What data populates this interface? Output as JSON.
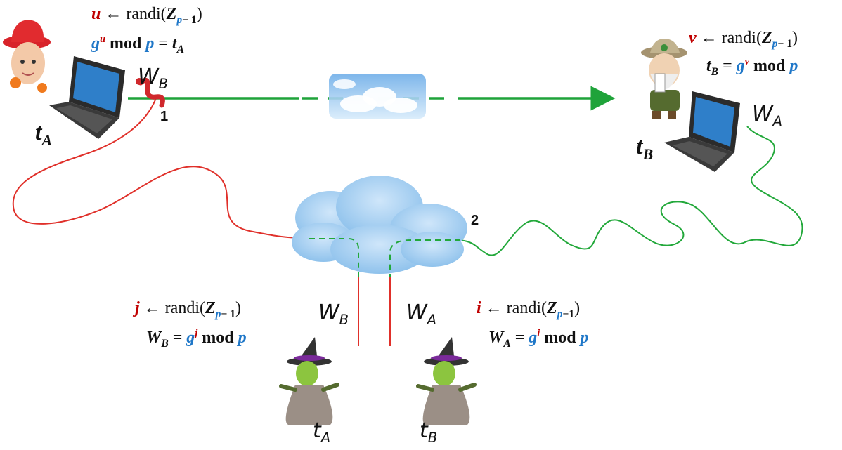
{
  "alice": {
    "formula1": {
      "var": "u",
      "arrow": "←",
      "func": "randi(",
      "set": "Z",
      "sub": "p",
      "sub_rest": "− 1",
      "close": ")"
    },
    "formula2": {
      "base": "g",
      "exp": "u",
      "mod": "mod",
      "p": "p",
      "eq": "=",
      "t": "t",
      "tsub": "A"
    },
    "t_label": {
      "t": "t",
      "sub": "A"
    },
    "worm_label": {
      "letter": "W",
      "sub": "B"
    }
  },
  "bob": {
    "formula1": {
      "var": "v",
      "arrow": "←",
      "func": "randi(",
      "set": "Z",
      "sub": "p",
      "sub_rest": "− 1",
      "close": ")"
    },
    "formula2": {
      "t": "t",
      "tsub": "B",
      "eq": "=",
      "base": "g",
      "exp": "v",
      "mod": "mod",
      "p": "p"
    },
    "t_label": {
      "t": "t",
      "sub": "B"
    },
    "worm_label": {
      "letter": "W",
      "sub": "A"
    }
  },
  "witch_left": {
    "formula1": {
      "var": "j",
      "arrow": "←",
      "func": "randi(",
      "set": "Z",
      "sub": "p",
      "sub_rest": "− 1",
      "close": ")"
    },
    "formula2": {
      "W": "W",
      "Wsub": "B",
      "eq": "=",
      "base": "g",
      "exp": "j",
      "mod": "mod",
      "p": "p"
    },
    "hand_W": {
      "letter": "W",
      "sub": "B"
    },
    "hand_t": {
      "t": "t",
      "sub": "A"
    }
  },
  "witch_right": {
    "formula1": {
      "var": "i",
      "arrow": "←",
      "func": "randi(",
      "set": "Z",
      "sub": "p",
      "sub_rest": "−1",
      "close": ")"
    },
    "formula2": {
      "W": "W",
      "Wsub": "A",
      "eq": "=",
      "base": "g",
      "exp": "i",
      "mod": "mod",
      "p": "p"
    },
    "hand_W": {
      "letter": "W",
      "sub": "A"
    },
    "hand_t": {
      "t": "t",
      "sub": "B"
    }
  },
  "steps": {
    "one": "1",
    "two": "2"
  },
  "colors": {
    "red_wire": "#e0302a",
    "green_wire": "#22a83a",
    "arrow_green": "#1fa33a",
    "blue_var": "#1f77c8",
    "red_var": "#c00000",
    "cloud": "#a9d2f2"
  }
}
